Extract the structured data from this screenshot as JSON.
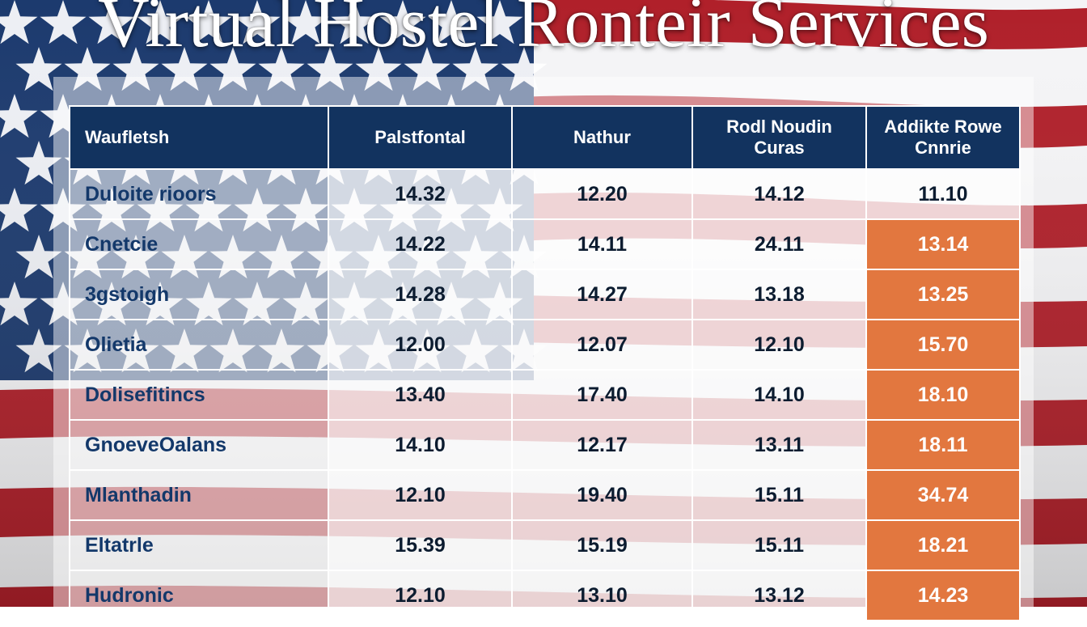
{
  "page": {
    "title": "Virtual Hostel Ronteir Services"
  },
  "colors": {
    "header": "#12335f",
    "highlight": "#e2773f",
    "flag_red": "#b0202a",
    "flag_blue": "#1c3a6e"
  },
  "chart_data": {
    "type": "table",
    "title": "Virtual Hostel Ronteir Services",
    "columns": [
      "Waufletsh",
      "Palstfontal",
      "Nathur",
      "Rodl Noudin Curas",
      "Addikte Rowe Cnnrie"
    ],
    "rows": [
      {
        "label": "Duloite rioors",
        "values": [
          "14.32",
          "12.20",
          "14.12",
          "11.10"
        ]
      },
      {
        "label": "Cnetcie",
        "values": [
          "14.22",
          "14.11",
          "24.11",
          "13.14"
        ]
      },
      {
        "label": "3gstoigh",
        "values": [
          "14.28",
          "14.27",
          "13.18",
          "13.25"
        ]
      },
      {
        "label": "Olietia",
        "values": [
          "12.00",
          "12.07",
          "12.10",
          "15.70"
        ]
      },
      {
        "label": "Dolisefitincs",
        "values": [
          "13.40",
          "17.40",
          "14.10",
          "18.10"
        ]
      },
      {
        "label": "GnoeveOalans",
        "values": [
          "14.10",
          "12.17",
          "13.11",
          "18.11"
        ]
      },
      {
        "label": "Mlanthadin",
        "values": [
          "12.10",
          "19.40",
          "15.11",
          "34.74"
        ]
      },
      {
        "label": "Eltatrle",
        "values": [
          "15.39",
          "15.19",
          "15.11",
          "18.21"
        ]
      },
      {
        "label": "Hudronic",
        "values": [
          "12.10",
          "13.10",
          "13.12",
          "14.23"
        ]
      }
    ],
    "highlighted_column": 4,
    "highlight_rows": [
      1,
      2,
      3,
      4,
      5,
      6,
      7,
      8
    ]
  }
}
